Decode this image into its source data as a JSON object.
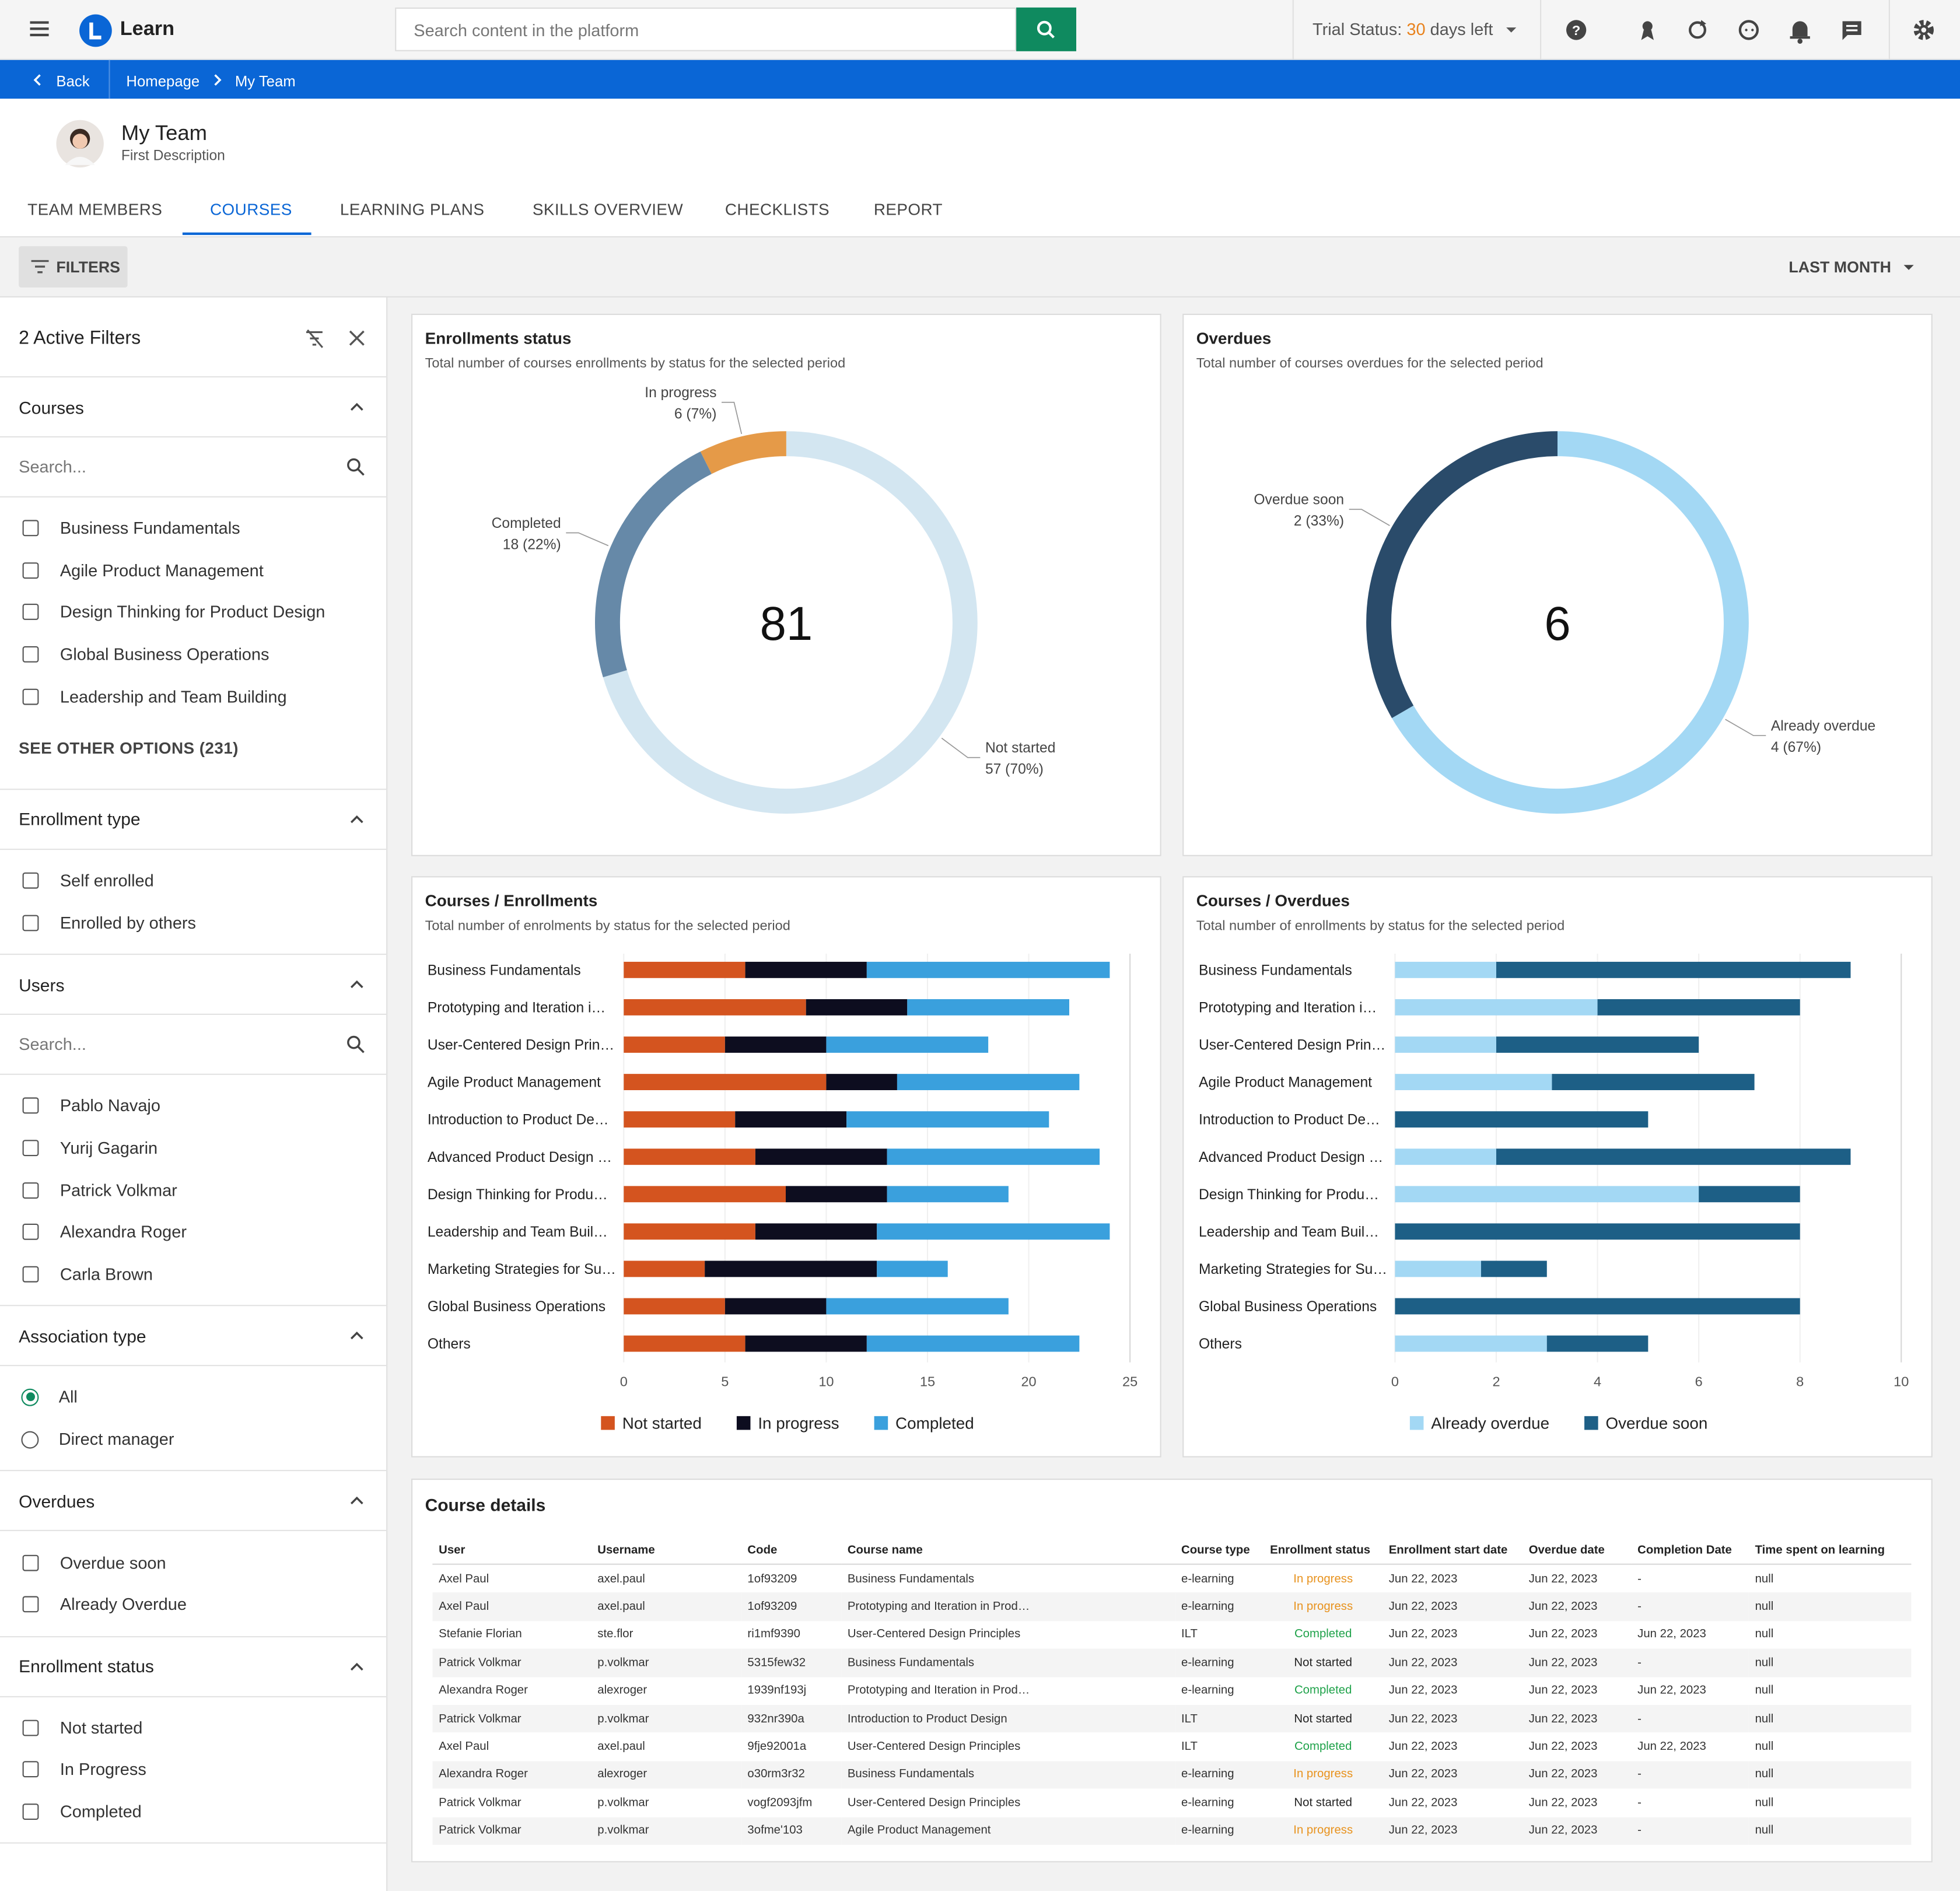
{
  "topbar": {
    "app_name": "Learn",
    "search_placeholder": "Search content in the platform",
    "trial_label": "Trial Status:",
    "trial_count": 30,
    "trial_suffix": "days left"
  },
  "breadcrumb": {
    "back": "Back",
    "items": [
      "Homepage",
      "My Team"
    ]
  },
  "page_header": {
    "title": "My Team",
    "description": "First Description"
  },
  "tabs": {
    "items": [
      "TEAM MEMBERS",
      "COURSES",
      "LEARNING PLANS",
      "SKILLS OVERVIEW",
      "CHECKLISTS",
      "REPORT"
    ],
    "active": 1
  },
  "toolbar": {
    "filters": "FILTERS",
    "period": "LAST MONTH"
  },
  "sidebar": {
    "title": "2 Active Filters",
    "sections": [
      {
        "title": "Courses",
        "search": "Search...",
        "control": "checkbox",
        "options": [
          "Business Fundamentals",
          "Agile Product Management",
          "Design Thinking for Product Design",
          "Global Business Operations",
          "Leadership and Team Building"
        ],
        "more": "SEE OTHER OPTIONS (231)"
      },
      {
        "title": "Enrollment type",
        "control": "checkbox",
        "options": [
          "Self enrolled",
          "Enrolled by others"
        ]
      },
      {
        "title": "Users",
        "search": "Search...",
        "control": "checkbox",
        "options": [
          "Pablo Navajo",
          "Yurij Gagarin",
          "Patrick Volkmar",
          "Alexandra Roger",
          "Carla Brown"
        ]
      },
      {
        "title": "Association type",
        "control": "radio",
        "selected": 0,
        "options": [
          "All",
          "Direct manager"
        ]
      },
      {
        "title": "Overdues",
        "control": "checkbox",
        "options": [
          "Overdue soon",
          "Already Overdue"
        ]
      },
      {
        "title": "Enrollment status",
        "control": "checkbox",
        "options": [
          "Not started",
          "In Progress",
          "Completed"
        ]
      }
    ]
  },
  "chart_data": [
    {
      "type": "donut",
      "title": "Enrollments status",
      "subtitle": "Total number of courses enrollments by status for the selected period",
      "total": 81,
      "categories": [
        "Not started",
        "Completed",
        "In progress"
      ],
      "values": [
        57,
        18,
        6
      ],
      "value_labels": [
        "57 (70%)",
        "18 (22%)",
        "6 (7%)"
      ],
      "colors": [
        "#d3e6f1",
        "#6689a8",
        "#e59a48"
      ]
    },
    {
      "type": "donut",
      "title": "Overdues",
      "subtitle": "Total number of courses overdues for the selected period",
      "total": 6,
      "categories": [
        "Already overdue",
        "Overdue soon"
      ],
      "values": [
        4,
        2
      ],
      "value_labels": [
        "4 (67%)",
        "2 (33%)"
      ],
      "colors": [
        "#a3d8f4",
        "#2a4b6a"
      ]
    },
    {
      "type": "stacked_bar",
      "orientation": "horizontal",
      "title": "Courses / Enrollments",
      "subtitle": "Total number of enrolments by status for the selected period",
      "categories": [
        "Business Fundamentals",
        "Prototyping and Iteration i…",
        "User-Centered Design Prin…",
        "Agile Product Management",
        "Introduction to Product De…",
        "Advanced Product Design …",
        "Design Thinking for Produ…",
        "Leadership and Team Buil…",
        "Marketing Strategies for Su…",
        "Global Business Operations",
        "Others"
      ],
      "series": [
        {
          "name": "Not started",
          "color": "#d4541f",
          "values": [
            6,
            9,
            5,
            10,
            5.5,
            6.5,
            8,
            6.5,
            4,
            5,
            6
          ]
        },
        {
          "name": "In progress",
          "color": "#0d0d1f",
          "values": [
            6,
            5,
            5,
            3.5,
            5.5,
            6.5,
            5,
            6,
            8.5,
            5,
            6
          ]
        },
        {
          "name": "Completed",
          "color": "#3aa0dd",
          "values": [
            12,
            8,
            8,
            9,
            10,
            10.5,
            6,
            11.5,
            3.5,
            9,
            10.5
          ]
        }
      ],
      "xlim": [
        0,
        25
      ],
      "xticks": [
        0,
        5,
        10,
        15,
        20,
        25
      ],
      "grid": true,
      "legend": "bottom"
    },
    {
      "type": "stacked_bar",
      "orientation": "horizontal",
      "title": "Courses / Overdues",
      "subtitle": "Total number of enrollments by status for the selected period",
      "categories": [
        "Business Fundamentals",
        "Prototyping and Iteration i…",
        "User-Centered Design Prin…",
        "Agile Product Management",
        "Introduction to Product De…",
        "Advanced Product Design …",
        "Design Thinking for Produ…",
        "Leadership and Team Buil…",
        "Marketing Strategies for Su…",
        "Global Business Operations",
        "Others"
      ],
      "series": [
        {
          "name": "Already overdue",
          "color": "#a3d8f4",
          "values": [
            2,
            4,
            2,
            3.1,
            0,
            2,
            6,
            0,
            1.7,
            0,
            3
          ]
        },
        {
          "name": "Overdue soon",
          "color": "#1d5f86",
          "values": [
            7,
            4,
            4,
            4,
            5,
            7,
            2,
            8,
            1.3,
            8,
            2
          ]
        }
      ],
      "xlim": [
        0,
        10
      ],
      "xticks": [
        0,
        2,
        4,
        6,
        8,
        10
      ],
      "grid": true,
      "legend": "bottom"
    }
  ],
  "table": {
    "title": "Course details",
    "columns": [
      "User",
      "Username",
      "Code",
      "Course name",
      "Course type",
      "Enrollment status",
      "Enrollment start date",
      "Overdue date",
      "Completion Date",
      "Time spent on learning"
    ],
    "status_colors": {
      "In progress": "#e8921d",
      "Completed": "#1fa24a",
      "Not started": "#222222"
    },
    "rows": [
      [
        "Axel Paul",
        "axel.paul",
        "1of93209",
        "Business Fundamentals",
        "e-learning",
        "In progress",
        "Jun 22, 2023",
        "Jun 22, 2023",
        "-",
        "null"
      ],
      [
        "Axel Paul",
        "axel.paul",
        "1of93209",
        "Prototyping and Iteration in Prod…",
        "e-learning",
        "In progress",
        "Jun 22, 2023",
        "Jun 22, 2023",
        "-",
        "null"
      ],
      [
        "Stefanie Florian",
        "ste.flor",
        "ri1mf9390",
        "User-Centered Design Principles",
        "ILT",
        "Completed",
        "Jun 22, 2023",
        "Jun 22, 2023",
        "Jun 22, 2023",
        "null"
      ],
      [
        "Patrick Volkmar",
        "p.volkmar",
        "5315few32",
        "Business Fundamentals",
        "e-learning",
        "Not started",
        "Jun 22, 2023",
        "Jun 22, 2023",
        "-",
        "null"
      ],
      [
        "Alexandra Roger",
        "alexroger",
        "1939nf193j",
        "Prototyping and Iteration in Prod…",
        "e-learning",
        "Completed",
        "Jun 22, 2023",
        "Jun 22, 2023",
        "Jun 22, 2023",
        "null"
      ],
      [
        "Patrick Volkmar",
        "p.volkmar",
        "932nr390a",
        "Introduction to Product Design",
        "ILT",
        "Not started",
        "Jun 22, 2023",
        "Jun 22, 2023",
        "-",
        "null"
      ],
      [
        "Axel Paul",
        "axel.paul",
        "9fje92001a",
        "User-Centered Design Principles",
        "ILT",
        "Completed",
        "Jun 22, 2023",
        "Jun 22, 2023",
        "Jun 22, 2023",
        "null"
      ],
      [
        "Alexandra Roger",
        "alexroger",
        "o30rm3r32",
        "Business Fundamentals",
        "e-learning",
        "In progress",
        "Jun 22, 2023",
        "Jun 22, 2023",
        "-",
        "null"
      ],
      [
        "Patrick Volkmar",
        "p.volkmar",
        "vogf2093jfm",
        "User-Centered Design Principles",
        "e-learning",
        "Not started",
        "Jun 22, 2023",
        "Jun 22, 2023",
        "-",
        "null"
      ],
      [
        "Patrick Volkmar",
        "p.volkmar",
        "3ofme'103",
        "Agile Product Management",
        "e-learning",
        "In progress",
        "Jun 22, 2023",
        "Jun 22, 2023",
        "-",
        "null"
      ]
    ]
  }
}
